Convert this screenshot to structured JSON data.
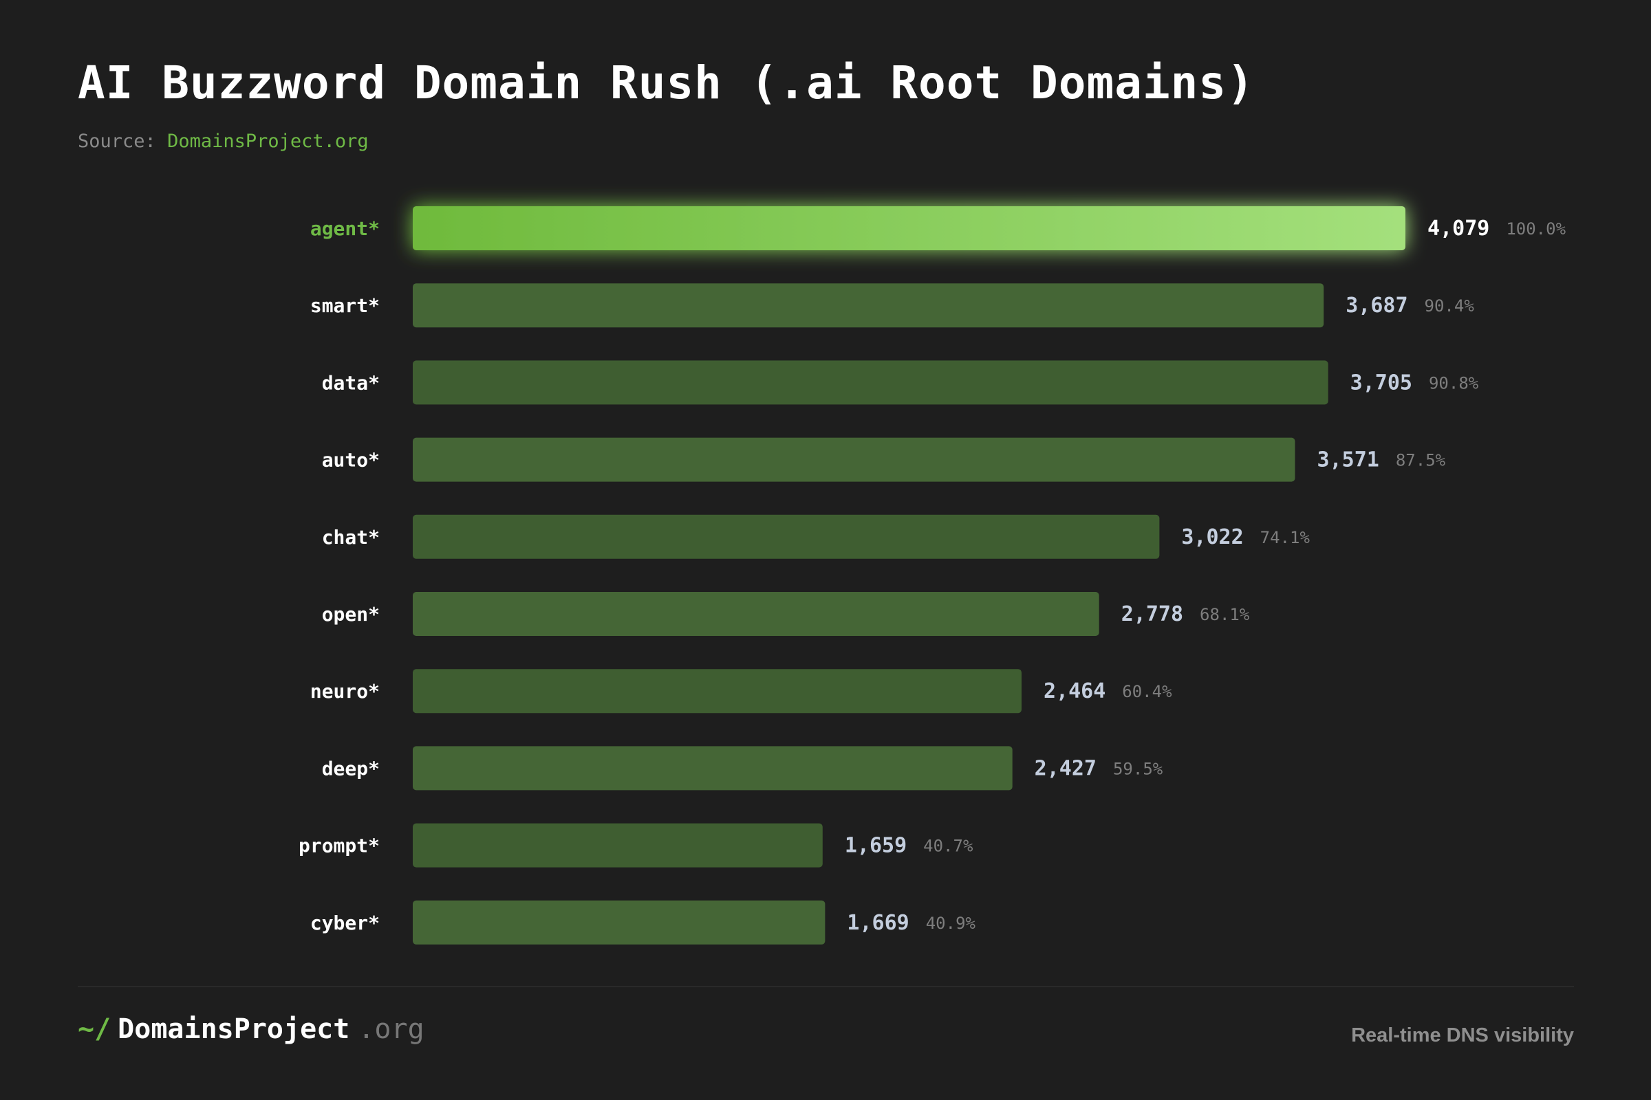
{
  "title": "AI Buzzword Domain Rush (.ai Root Domains)",
  "source": {
    "label": "Source:",
    "link": "DomainsProject.org"
  },
  "footer": {
    "logo_tilde": "~/",
    "logo_name": "DomainsProject",
    "logo_tld": ".org",
    "tagline": "Real-time DNS visibility"
  },
  "colors": {
    "background": "#1e1e1e",
    "highlight_bar_start": "#6fba3c",
    "highlight_bar_end": "#a4e07c",
    "bar": "#456636",
    "bar_dark": "#3f5e31",
    "accent": "#6fba46"
  },
  "chart_data": {
    "type": "bar",
    "orientation": "horizontal",
    "categories": [
      "agent*",
      "smart*",
      "data*",
      "auto*",
      "chat*",
      "open*",
      "neuro*",
      "deep*",
      "prompt*",
      "cyber*"
    ],
    "values": [
      4079,
      3687,
      3705,
      3571,
      3022,
      2778,
      2464,
      2427,
      1659,
      1669
    ],
    "value_labels": [
      "4,079",
      "3,687",
      "3,705",
      "3,571",
      "3,022",
      "2,778",
      "2,464",
      "2,427",
      "1,659",
      "1,669"
    ],
    "percent_labels": [
      "100.0%",
      "90.4%",
      "90.8%",
      "87.5%",
      "74.1%",
      "68.1%",
      "60.4%",
      "59.5%",
      "40.7%",
      "40.9%"
    ],
    "percents": [
      100.0,
      90.4,
      90.8,
      87.5,
      74.1,
      68.1,
      60.4,
      59.5,
      40.7,
      40.9
    ],
    "highlighted": "agent*",
    "grid": false,
    "legend": "none"
  }
}
